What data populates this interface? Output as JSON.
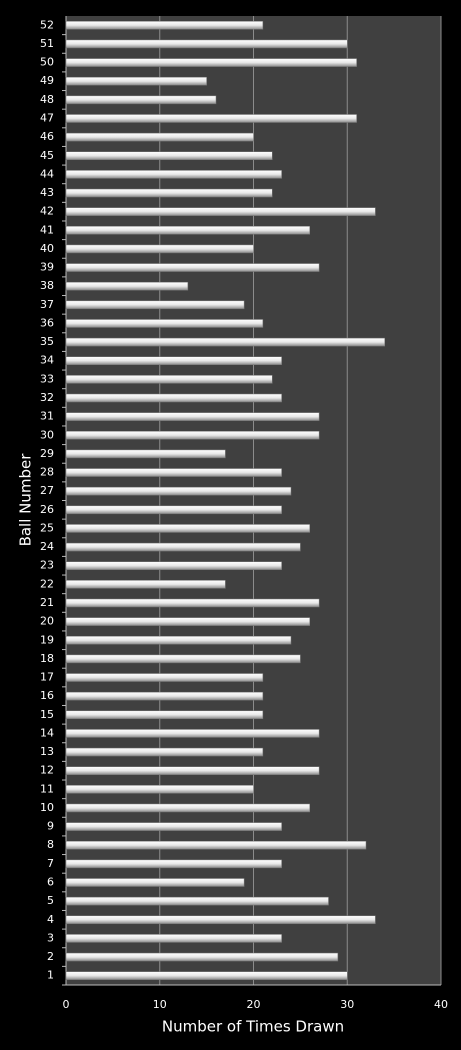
{
  "chart_data": {
    "type": "bar",
    "orientation": "horizontal",
    "x_label": "Number of Times Drawn",
    "y_label": "Ball Number",
    "categories": [
      "1",
      "2",
      "3",
      "4",
      "5",
      "6",
      "7",
      "8",
      "9",
      "10",
      "11",
      "12",
      "13",
      "14",
      "15",
      "16",
      "17",
      "18",
      "19",
      "20",
      "21",
      "22",
      "23",
      "24",
      "25",
      "26",
      "27",
      "28",
      "29",
      "30",
      "31",
      "32",
      "33",
      "34",
      "35",
      "36",
      "37",
      "38",
      "39",
      "40",
      "41",
      "42",
      "43",
      "44",
      "45",
      "46",
      "47",
      "48",
      "49",
      "50",
      "51",
      "52"
    ],
    "values": [
      30,
      29,
      23,
      33,
      28,
      19,
      23,
      32,
      23,
      26,
      20,
      27,
      21,
      27,
      21,
      21,
      21,
      25,
      24,
      26,
      27,
      17,
      23,
      25,
      26,
      23,
      24,
      23,
      17,
      27,
      27,
      23,
      22,
      23,
      34,
      21,
      19,
      13,
      27,
      20,
      26,
      33,
      22,
      23,
      22,
      20,
      31,
      16,
      15,
      31,
      30,
      21
    ],
    "color": "#e8e8e8",
    "xlim": [
      0,
      40
    ],
    "xticks": [
      0,
      10,
      20,
      30,
      40
    ],
    "grid": true
  }
}
